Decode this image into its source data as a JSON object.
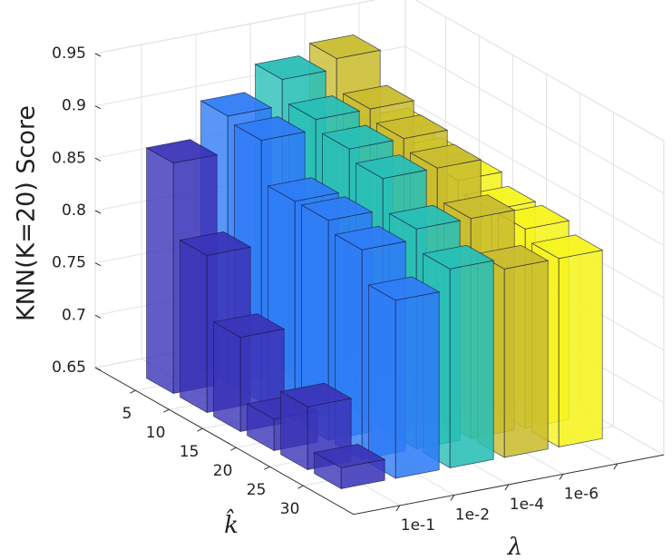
{
  "chart_data": {
    "type": "bar3",
    "zlabel": "KNN(K=20) Score",
    "xlabel": "k̂",
    "ylabel": "λ",
    "categories": [
      5,
      10,
      15,
      20,
      25,
      30
    ],
    "series": [
      {
        "name": "1e-1",
        "color": "#3b35b8",
        "values": [
          0.87,
          0.8,
          0.74,
          0.68,
          0.71,
          0.67
        ]
      },
      {
        "name": "1e-2",
        "color": "#2f7cf6",
        "values": [
          0.905,
          0.9,
          0.86,
          0.86,
          0.85,
          0.82
        ]
      },
      {
        "name": "1e-4",
        "color": "#28bfb6",
        "values": [
          0.93,
          0.91,
          0.9,
          0.89,
          0.86,
          0.84
        ]
      },
      {
        "name": "1e-6",
        "color": "#c9bd2f",
        "values": [
          0.94,
          0.91,
          0.9,
          0.89,
          0.86,
          0.83
        ]
      },
      {
        "name": null,
        "color": "#f6f41e",
        "values": [
          0.86,
          0.85,
          0.85,
          0.84,
          0.84,
          0.83
        ]
      }
    ],
    "zlim": [
      0.65,
      0.95
    ],
    "zticks": [
      0.65,
      0.7,
      0.75,
      0.8,
      0.85,
      0.9,
      0.95
    ],
    "grid": true
  }
}
